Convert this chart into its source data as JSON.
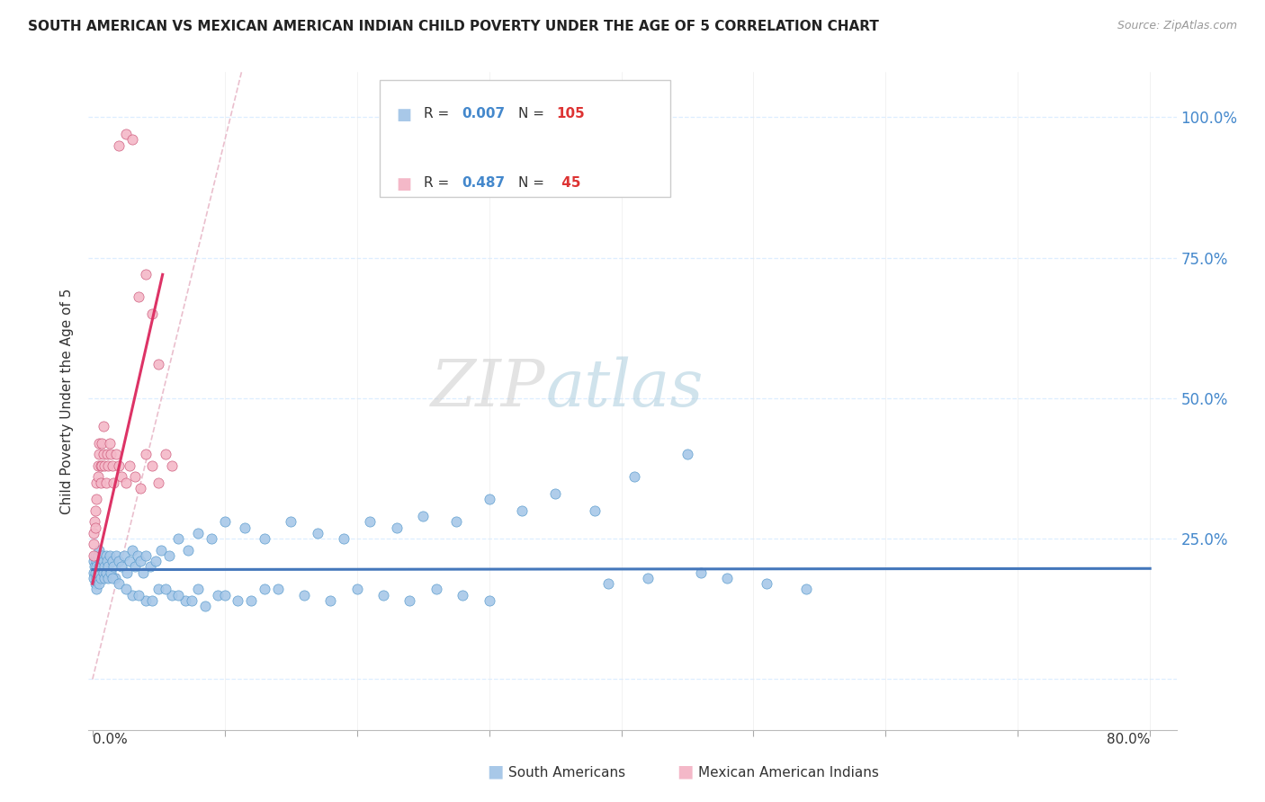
{
  "title": "SOUTH AMERICAN VS MEXICAN AMERICAN INDIAN CHILD POVERTY UNDER THE AGE OF 5 CORRELATION CHART",
  "source": "Source: ZipAtlas.com",
  "ylabel": "Child Poverty Under the Age of 5",
  "watermark_zip": "ZIP",
  "watermark_atlas": "atlas",
  "blue_color": "#a8c8e8",
  "blue_edge": "#5599cc",
  "pink_color": "#f4b8c8",
  "pink_edge": "#cc5577",
  "trend_blue": "#4477bb",
  "trend_pink": "#dd3366",
  "diag_color": "#e8b8c8",
  "grid_color": "#ddeeff",
  "legend_r_color": "#4477bb",
  "legend_n_color": "#dd4444",
  "xlim_min": -0.003,
  "xlim_max": 0.82,
  "ylim_min": -0.09,
  "ylim_max": 1.08,
  "yticks": [
    0.0,
    0.25,
    0.5,
    0.75,
    1.0
  ],
  "ytick_labels": [
    "",
    "25.0%",
    "50.0%",
    "75.0%",
    "100.0%"
  ],
  "xtick_positions": [
    0.0,
    0.1,
    0.2,
    0.3,
    0.4,
    0.5,
    0.6,
    0.7,
    0.8
  ],
  "blue_x": [
    0.0005,
    0.001,
    0.001,
    0.0015,
    0.002,
    0.002,
    0.002,
    0.003,
    0.003,
    0.003,
    0.003,
    0.004,
    0.004,
    0.005,
    0.005,
    0.005,
    0.006,
    0.006,
    0.007,
    0.007,
    0.008,
    0.008,
    0.009,
    0.009,
    0.01,
    0.01,
    0.011,
    0.012,
    0.012,
    0.013,
    0.014,
    0.015,
    0.016,
    0.017,
    0.018,
    0.02,
    0.022,
    0.024,
    0.026,
    0.028,
    0.03,
    0.032,
    0.034,
    0.036,
    0.038,
    0.04,
    0.044,
    0.048,
    0.052,
    0.058,
    0.065,
    0.072,
    0.08,
    0.09,
    0.1,
    0.115,
    0.13,
    0.15,
    0.17,
    0.19,
    0.21,
    0.23,
    0.25,
    0.275,
    0.3,
    0.325,
    0.35,
    0.38,
    0.41,
    0.45,
    0.03,
    0.04,
    0.05,
    0.06,
    0.07,
    0.08,
    0.095,
    0.11,
    0.13,
    0.015,
    0.02,
    0.025,
    0.035,
    0.045,
    0.055,
    0.065,
    0.075,
    0.085,
    0.1,
    0.12,
    0.14,
    0.16,
    0.18,
    0.2,
    0.22,
    0.24,
    0.26,
    0.28,
    0.3,
    0.48,
    0.51,
    0.54,
    0.46,
    0.42,
    0.39
  ],
  "blue_y": [
    0.19,
    0.21,
    0.18,
    0.2,
    0.22,
    0.19,
    0.17,
    0.21,
    0.2,
    0.18,
    0.16,
    0.22,
    0.19,
    0.23,
    0.2,
    0.17,
    0.21,
    0.18,
    0.2,
    0.22,
    0.19,
    0.21,
    0.2,
    0.18,
    0.22,
    0.19,
    0.21,
    0.2,
    0.18,
    0.22,
    0.19,
    0.21,
    0.2,
    0.18,
    0.22,
    0.21,
    0.2,
    0.22,
    0.19,
    0.21,
    0.23,
    0.2,
    0.22,
    0.21,
    0.19,
    0.22,
    0.2,
    0.21,
    0.23,
    0.22,
    0.25,
    0.23,
    0.26,
    0.25,
    0.28,
    0.27,
    0.25,
    0.28,
    0.26,
    0.25,
    0.28,
    0.27,
    0.29,
    0.28,
    0.32,
    0.3,
    0.33,
    0.3,
    0.36,
    0.4,
    0.15,
    0.14,
    0.16,
    0.15,
    0.14,
    0.16,
    0.15,
    0.14,
    0.16,
    0.18,
    0.17,
    0.16,
    0.15,
    0.14,
    0.16,
    0.15,
    0.14,
    0.13,
    0.15,
    0.14,
    0.16,
    0.15,
    0.14,
    0.16,
    0.15,
    0.14,
    0.16,
    0.15,
    0.14,
    0.18,
    0.17,
    0.16,
    0.19,
    0.18,
    0.17
  ],
  "pink_x": [
    0.0005,
    0.001,
    0.001,
    0.0015,
    0.002,
    0.002,
    0.003,
    0.003,
    0.004,
    0.004,
    0.005,
    0.005,
    0.006,
    0.006,
    0.007,
    0.007,
    0.008,
    0.008,
    0.009,
    0.01,
    0.011,
    0.012,
    0.013,
    0.014,
    0.015,
    0.016,
    0.018,
    0.02,
    0.022,
    0.025,
    0.028,
    0.032,
    0.036,
    0.04,
    0.045,
    0.05,
    0.055,
    0.06,
    0.02,
    0.025,
    0.03,
    0.035,
    0.04,
    0.045,
    0.05
  ],
  "pink_y": [
    0.22,
    0.24,
    0.26,
    0.28,
    0.3,
    0.27,
    0.32,
    0.35,
    0.38,
    0.36,
    0.4,
    0.42,
    0.38,
    0.35,
    0.42,
    0.38,
    0.45,
    0.4,
    0.38,
    0.35,
    0.4,
    0.38,
    0.42,
    0.4,
    0.38,
    0.35,
    0.4,
    0.38,
    0.36,
    0.35,
    0.38,
    0.36,
    0.34,
    0.4,
    0.38,
    0.35,
    0.4,
    0.38,
    0.95,
    0.97,
    0.96,
    0.68,
    0.72,
    0.65,
    0.56
  ],
  "blue_trend_y_at_0": 0.195,
  "blue_trend_y_at_08": 0.197,
  "pink_trend_x0": 0.0,
  "pink_trend_y0": 0.17,
  "pink_trend_x1": 0.053,
  "pink_trend_y1": 0.72
}
